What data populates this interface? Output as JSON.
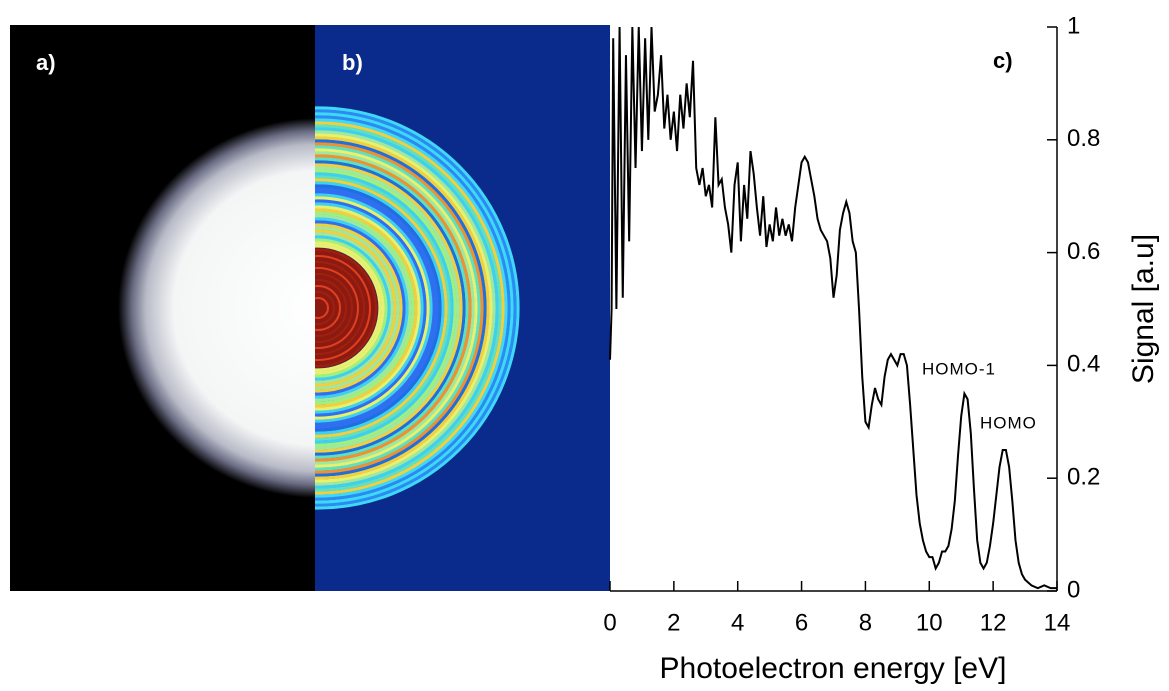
{
  "chart_data": {
    "type": "line",
    "panel_labels": [
      "a)",
      "b)",
      "c)"
    ],
    "xlabel": "Photoelectron energy [eV]",
    "ylabel": "Signal [a.u]",
    "annotations": [
      "HOMO-1",
      "HOMO"
    ],
    "xlim": [
      0,
      14
    ],
    "xticks": [
      0,
      2,
      4,
      6,
      8,
      10,
      12,
      14
    ],
    "ylim": [
      0,
      1
    ],
    "yticks": [
      0,
      0.2,
      0.4,
      0.6,
      0.8,
      1
    ],
    "x": [
      0.0,
      0.05,
      0.1,
      0.2,
      0.3,
      0.4,
      0.5,
      0.6,
      0.7,
      0.8,
      0.9,
      1.0,
      1.1,
      1.2,
      1.3,
      1.4,
      1.5,
      1.6,
      1.7,
      1.8,
      1.9,
      2.0,
      2.1,
      2.2,
      2.3,
      2.4,
      2.5,
      2.6,
      2.7,
      2.8,
      2.9,
      3.0,
      3.1,
      3.2,
      3.3,
      3.4,
      3.5,
      3.6,
      3.7,
      3.8,
      3.9,
      4.0,
      4.1,
      4.2,
      4.3,
      4.4,
      4.5,
      4.6,
      4.7,
      4.8,
      4.9,
      5.0,
      5.1,
      5.2,
      5.3,
      5.4,
      5.5,
      5.6,
      5.7,
      5.8,
      5.9,
      6.0,
      6.1,
      6.2,
      6.3,
      6.4,
      6.5,
      6.6,
      6.7,
      6.8,
      6.9,
      7.0,
      7.1,
      7.2,
      7.3,
      7.4,
      7.5,
      7.6,
      7.7,
      7.8,
      7.9,
      8.0,
      8.1,
      8.2,
      8.3,
      8.4,
      8.5,
      8.6,
      8.7,
      8.8,
      8.9,
      9.0,
      9.1,
      9.2,
      9.3,
      9.4,
      9.5,
      9.6,
      9.7,
      9.8,
      9.9,
      10.0,
      10.1,
      10.2,
      10.3,
      10.4,
      10.5,
      10.6,
      10.7,
      10.8,
      10.9,
      11.0,
      11.1,
      11.2,
      11.3,
      11.4,
      11.5,
      11.6,
      11.7,
      11.8,
      11.9,
      12.0,
      12.1,
      12.2,
      12.3,
      12.4,
      12.5,
      12.6,
      12.7,
      12.8,
      12.9,
      13.0,
      13.2,
      13.4,
      13.6,
      13.8,
      14.0
    ],
    "series": [
      {
        "name": "Signal",
        "color": "#000000",
        "values": [
          0.41,
          0.5,
          0.98,
          0.5,
          1.0,
          0.52,
          0.95,
          0.62,
          1.0,
          0.75,
          1.0,
          0.78,
          0.98,
          0.8,
          1.0,
          0.85,
          0.88,
          0.95,
          0.82,
          0.88,
          0.8,
          0.85,
          0.78,
          0.88,
          0.82,
          0.9,
          0.84,
          0.94,
          0.75,
          0.72,
          0.75,
          0.7,
          0.72,
          0.68,
          0.84,
          0.72,
          0.73,
          0.68,
          0.65,
          0.6,
          0.72,
          0.76,
          0.62,
          0.72,
          0.66,
          0.78,
          0.74,
          0.68,
          0.63,
          0.7,
          0.61,
          0.65,
          0.62,
          0.68,
          0.63,
          0.66,
          0.63,
          0.65,
          0.62,
          0.68,
          0.72,
          0.76,
          0.77,
          0.76,
          0.73,
          0.7,
          0.66,
          0.64,
          0.63,
          0.62,
          0.59,
          0.52,
          0.56,
          0.64,
          0.67,
          0.69,
          0.67,
          0.62,
          0.6,
          0.5,
          0.38,
          0.3,
          0.29,
          0.33,
          0.36,
          0.34,
          0.33,
          0.38,
          0.41,
          0.42,
          0.41,
          0.4,
          0.42,
          0.42,
          0.4,
          0.33,
          0.25,
          0.17,
          0.12,
          0.09,
          0.07,
          0.06,
          0.06,
          0.04,
          0.05,
          0.07,
          0.07,
          0.08,
          0.11,
          0.16,
          0.24,
          0.31,
          0.35,
          0.34,
          0.28,
          0.18,
          0.09,
          0.05,
          0.04,
          0.05,
          0.08,
          0.12,
          0.17,
          0.22,
          0.25,
          0.25,
          0.22,
          0.16,
          0.09,
          0.05,
          0.03,
          0.02,
          0.01,
          0.005,
          0.01,
          0.005,
          0.005
        ]
      }
    ]
  }
}
